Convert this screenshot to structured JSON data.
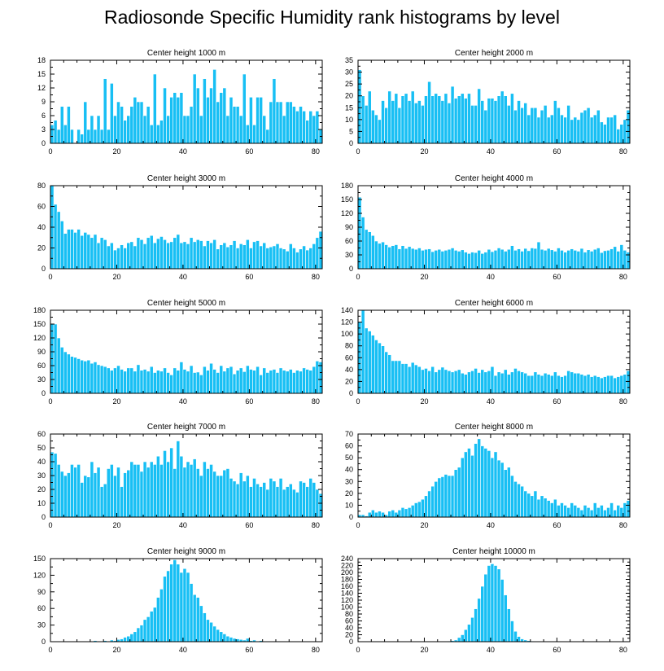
{
  "title": "Radiosonde Specific Humidity rank histograms by level",
  "colors": {
    "bar": "#17BFF4",
    "bar_edge": "#ffffff",
    "axis": "#000000"
  },
  "chart_data": [
    {
      "type": "bar",
      "title": "Center height 1000 m",
      "xlim": [
        0,
        82
      ],
      "ylim": [
        0,
        18
      ],
      "xticks": [
        0,
        20,
        40,
        60,
        80
      ],
      "yticks": [
        0,
        3,
        6,
        9,
        12,
        15,
        18
      ],
      "values": [
        4,
        5,
        3,
        8,
        4,
        8,
        3,
        0,
        3,
        2,
        9,
        3,
        6,
        3,
        6,
        3,
        14,
        3,
        13,
        6,
        9,
        8,
        5,
        6,
        8,
        10,
        9,
        9,
        6,
        8,
        4,
        15,
        4,
        5,
        12,
        6,
        10,
        11,
        10,
        11,
        6,
        6,
        8,
        15,
        12,
        6,
        14,
        10,
        12,
        16,
        9,
        11,
        12,
        6,
        10,
        8,
        8,
        6,
        15,
        4,
        10,
        4,
        10,
        10,
        6,
        3,
        9,
        14,
        9,
        9,
        6,
        9,
        9,
        8,
        7,
        8,
        7,
        5,
        7,
        6,
        7,
        3
      ],
      "xlabel": "",
      "ylabel": ""
    },
    {
      "type": "bar",
      "title": "Center height 2000 m",
      "xlim": [
        0,
        82
      ],
      "ylim": [
        0,
        35
      ],
      "xticks": [
        0,
        20,
        40,
        60,
        80
      ],
      "yticks": [
        0,
        5,
        10,
        15,
        20,
        25,
        30,
        35
      ],
      "values": [
        31,
        20,
        16,
        22,
        14,
        12,
        10,
        18,
        15,
        22,
        18,
        21,
        15,
        20,
        21,
        18,
        22,
        17,
        18,
        16,
        20,
        26,
        20,
        21,
        20,
        18,
        21,
        17,
        24,
        19,
        20,
        21,
        19,
        21,
        16,
        16,
        23,
        18,
        14,
        19,
        19,
        18,
        20,
        22,
        20,
        16,
        21,
        14,
        18,
        15,
        17,
        12,
        15,
        15,
        11,
        14,
        16,
        11,
        12,
        18,
        15,
        12,
        11,
        16,
        10,
        11,
        10,
        13,
        14,
        15,
        11,
        12,
        14,
        9,
        8,
        11,
        11,
        12,
        6,
        8,
        10,
        14
      ],
      "xlabel": "",
      "ylabel": ""
    },
    {
      "type": "bar",
      "title": "Center height 3000 m",
      "xlim": [
        0,
        82
      ],
      "ylim": [
        0,
        80
      ],
      "xticks": [
        0,
        20,
        40,
        60,
        80
      ],
      "yticks": [
        0,
        20,
        40,
        60,
        80
      ],
      "values": [
        80,
        62,
        55,
        46,
        34,
        38,
        38,
        35,
        38,
        32,
        35,
        33,
        30,
        33,
        25,
        30,
        28,
        22,
        25,
        18,
        20,
        23,
        20,
        25,
        26,
        22,
        30,
        28,
        24,
        30,
        32,
        25,
        29,
        31,
        28,
        25,
        26,
        30,
        33,
        25,
        26,
        24,
        30,
        26,
        28,
        27,
        22,
        27,
        25,
        28,
        19,
        23,
        25,
        21,
        23,
        27,
        20,
        24,
        23,
        28,
        20,
        26,
        27,
        22,
        25,
        20,
        21,
        22,
        24,
        20,
        19,
        17,
        24,
        20,
        16,
        19,
        22,
        18,
        20,
        24,
        30,
        36
      ],
      "xlabel": "",
      "ylabel": ""
    },
    {
      "type": "bar",
      "title": "Center height 4000 m",
      "xlim": [
        0,
        82
      ],
      "ylim": [
        0,
        180
      ],
      "xticks": [
        0,
        20,
        40,
        60,
        80
      ],
      "yticks": [
        0,
        30,
        60,
        90,
        120,
        150,
        180
      ],
      "values": [
        155,
        112,
        85,
        80,
        72,
        60,
        55,
        58,
        52,
        47,
        50,
        52,
        43,
        50,
        44,
        48,
        44,
        42,
        45,
        40,
        42,
        43,
        37,
        40,
        42,
        38,
        40,
        42,
        45,
        40,
        38,
        41,
        36,
        33,
        36,
        35,
        40,
        33,
        36,
        42,
        37,
        40,
        45,
        42,
        38,
        42,
        50,
        40,
        43,
        38,
        44,
        39,
        45,
        44,
        58,
        42,
        40,
        44,
        41,
        38,
        45,
        40,
        36,
        40,
        43,
        40,
        38,
        44,
        36,
        41,
        38,
        42,
        45,
        35,
        39,
        40,
        43,
        48,
        38,
        52,
        40,
        36
      ],
      "xlabel": "",
      "ylabel": ""
    },
    {
      "type": "bar",
      "title": "Center height 5000 m",
      "xlim": [
        0,
        82
      ],
      "ylim": [
        0,
        180
      ],
      "xticks": [
        0,
        20,
        40,
        60,
        80
      ],
      "yticks": [
        0,
        30,
        60,
        90,
        120,
        150,
        180
      ],
      "values": [
        150,
        150,
        120,
        100,
        90,
        85,
        80,
        78,
        75,
        72,
        70,
        72,
        65,
        68,
        62,
        60,
        58,
        55,
        50,
        55,
        60,
        52,
        48,
        55,
        55,
        48,
        62,
        50,
        52,
        48,
        58,
        45,
        50,
        48,
        55,
        45,
        40,
        55,
        50,
        68,
        52,
        48,
        60,
        45,
        46,
        40,
        58,
        50,
        65,
        52,
        45,
        60,
        48,
        55,
        58,
        42,
        50,
        55,
        47,
        60,
        52,
        50,
        58,
        40,
        55,
        45,
        50,
        52,
        45,
        55,
        50,
        48,
        52,
        45,
        50,
        48,
        55,
        52,
        50,
        58,
        70,
        68
      ],
      "xlabel": "",
      "ylabel": ""
    },
    {
      "type": "bar",
      "title": "Center height 6000 m",
      "xlim": [
        0,
        82
      ],
      "ylim": [
        0,
        140
      ],
      "xticks": [
        0,
        20,
        40,
        60,
        80
      ],
      "yticks": [
        0,
        20,
        40,
        60,
        80,
        100,
        120,
        140
      ],
      "values": [
        120,
        140,
        110,
        105,
        98,
        90,
        85,
        80,
        70,
        65,
        55,
        55,
        55,
        50,
        50,
        45,
        52,
        48,
        45,
        40,
        42,
        38,
        45,
        36,
        40,
        44,
        40,
        38,
        36,
        38,
        40,
        34,
        32,
        36,
        38,
        42,
        35,
        40,
        36,
        38,
        45,
        30,
        36,
        34,
        40,
        32,
        36,
        42,
        38,
        36,
        34,
        30,
        30,
        36,
        32,
        30,
        34,
        32,
        30,
        36,
        30,
        28,
        30,
        38,
        36,
        34,
        34,
        32,
        30,
        32,
        28,
        30,
        28,
        26,
        28,
        30,
        30,
        26,
        28,
        30,
        32,
        38
      ],
      "xlabel": "",
      "ylabel": ""
    },
    {
      "type": "bar",
      "title": "Center height 7000 m",
      "xlim": [
        0,
        82
      ],
      "ylim": [
        0,
        60
      ],
      "xticks": [
        0,
        20,
        40,
        60,
        80
      ],
      "yticks": [
        0,
        10,
        20,
        30,
        40,
        50,
        60
      ],
      "values": [
        47,
        46,
        38,
        33,
        30,
        32,
        38,
        36,
        38,
        25,
        30,
        29,
        40,
        32,
        36,
        22,
        24,
        35,
        38,
        30,
        36,
        22,
        32,
        34,
        40,
        38,
        38,
        33,
        40,
        36,
        40,
        38,
        44,
        38,
        48,
        40,
        50,
        35,
        55,
        44,
        36,
        40,
        38,
        42,
        35,
        30,
        40,
        35,
        38,
        33,
        30,
        30,
        34,
        35,
        28,
        26,
        24,
        32,
        26,
        30,
        22,
        28,
        24,
        22,
        25,
        20,
        28,
        26,
        22,
        28,
        20,
        22,
        24,
        20,
        18,
        26,
        25,
        22,
        28,
        25,
        20,
        17
      ],
      "xlabel": "",
      "ylabel": ""
    },
    {
      "type": "bar",
      "title": "Center height 8000 m",
      "xlim": [
        0,
        82
      ],
      "ylim": [
        0,
        70
      ],
      "xticks": [
        0,
        20,
        40,
        60,
        80
      ],
      "yticks": [
        0,
        10,
        20,
        30,
        40,
        50,
        60,
        70
      ],
      "values": [
        2,
        2,
        1,
        4,
        6,
        4,
        5,
        4,
        2,
        5,
        6,
        4,
        6,
        8,
        7,
        8,
        10,
        12,
        13,
        15,
        18,
        22,
        26,
        30,
        33,
        34,
        36,
        35,
        35,
        40,
        42,
        50,
        55,
        58,
        52,
        62,
        66,
        60,
        58,
        56,
        50,
        55,
        48,
        46,
        40,
        42,
        35,
        30,
        28,
        26,
        22,
        20,
        18,
        22,
        15,
        18,
        16,
        14,
        12,
        15,
        10,
        12,
        10,
        8,
        12,
        10,
        8,
        6,
        10,
        8,
        6,
        12,
        8,
        10,
        6,
        8,
        12,
        6,
        10,
        8,
        12,
        14
      ],
      "xlabel": "",
      "ylabel": ""
    },
    {
      "type": "bar",
      "title": "Center height 9000 m",
      "xlim": [
        0,
        82
      ],
      "ylim": [
        0,
        150
      ],
      "xticks": [
        0,
        20,
        40,
        60,
        80
      ],
      "yticks": [
        0,
        30,
        60,
        90,
        120,
        150
      ],
      "values": [
        0,
        0,
        0,
        0,
        0,
        0,
        0,
        0,
        0,
        0,
        1,
        0,
        1,
        2,
        0,
        1,
        2,
        1,
        3,
        2,
        4,
        5,
        8,
        10,
        14,
        18,
        25,
        30,
        40,
        45,
        55,
        62,
        80,
        95,
        118,
        128,
        140,
        148,
        140,
        125,
        132,
        125,
        105,
        85,
        80,
        65,
        52,
        40,
        35,
        28,
        22,
        18,
        14,
        10,
        8,
        6,
        5,
        4,
        3,
        6,
        2,
        3,
        1,
        2,
        1,
        1,
        0,
        0,
        1,
        0,
        0,
        0,
        0,
        0,
        0,
        0,
        0,
        0,
        0,
        0,
        0,
        0
      ],
      "xlabel": "",
      "ylabel": ""
    },
    {
      "type": "bar",
      "title": "Center height 10000 m",
      "xlim": [
        0,
        82
      ],
      "ylim": [
        0,
        240
      ],
      "xticks": [
        0,
        20,
        40,
        60,
        80
      ],
      "yticks": [
        0,
        20,
        40,
        60,
        80,
        100,
        120,
        140,
        160,
        180,
        200,
        220,
        240
      ],
      "values": [
        0,
        0,
        0,
        0,
        0,
        0,
        0,
        0,
        0,
        0,
        0,
        0,
        0,
        0,
        0,
        0,
        0,
        0,
        0,
        0,
        0,
        0,
        0,
        0,
        0,
        0,
        1,
        2,
        3,
        5,
        12,
        20,
        35,
        50,
        70,
        95,
        125,
        160,
        195,
        220,
        225,
        220,
        210,
        180,
        135,
        95,
        60,
        30,
        15,
        8,
        5,
        3,
        2,
        1,
        1,
        0,
        0,
        0,
        0,
        0,
        0,
        0,
        0,
        0,
        0,
        0,
        0,
        0,
        0,
        0,
        0,
        0,
        0,
        0,
        0,
        0,
        0,
        0,
        0,
        0,
        0,
        0
      ],
      "xlabel": "",
      "ylabel": ""
    }
  ]
}
